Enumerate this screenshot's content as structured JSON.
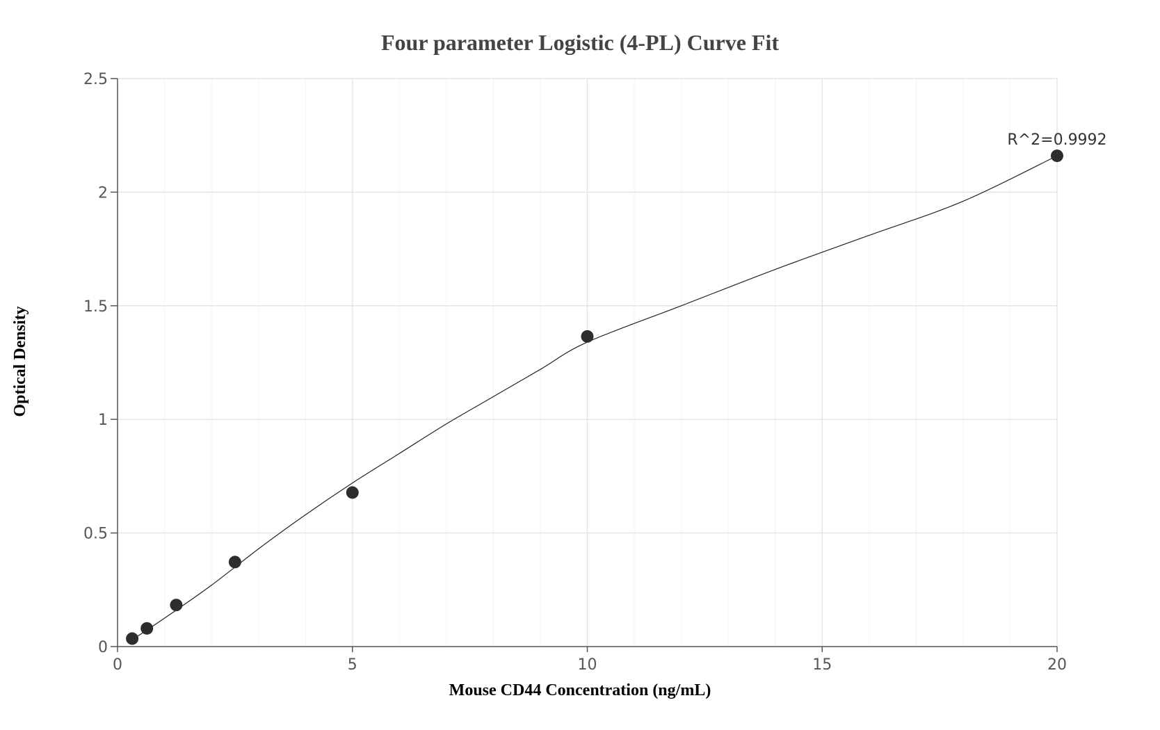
{
  "chart_data": {
    "type": "scatter",
    "title": "Four parameter Logistic (4-PL) Curve Fit",
    "xlabel": "Mouse CD44 Concentration (ng/mL)",
    "ylabel": "Optical Density",
    "xlim": [
      0,
      20
    ],
    "ylim": [
      0,
      2.5
    ],
    "x_ticks": [
      0,
      5,
      10,
      15,
      20
    ],
    "x_tick_labels": [
      "0",
      "5",
      "10",
      "15",
      "20"
    ],
    "y_ticks": [
      0,
      0.5,
      1,
      1.5,
      2,
      2.5
    ],
    "y_tick_labels": [
      "0",
      "0.5",
      "1",
      "1.5",
      "2",
      "2.5"
    ],
    "grid": true,
    "points": [
      {
        "x": 0.3125,
        "y": 0.035
      },
      {
        "x": 0.625,
        "y": 0.08
      },
      {
        "x": 1.25,
        "y": 0.183
      },
      {
        "x": 2.5,
        "y": 0.372
      },
      {
        "x": 5,
        "y": 0.678
      },
      {
        "x": 10,
        "y": 1.365
      },
      {
        "x": 20,
        "y": 2.16
      }
    ],
    "fit_curve": [
      {
        "x": 0.3125,
        "y": 0.03
      },
      {
        "x": 1,
        "y": 0.125
      },
      {
        "x": 2,
        "y": 0.27
      },
      {
        "x": 3,
        "y": 0.43
      },
      {
        "x": 4,
        "y": 0.58
      },
      {
        "x": 5,
        "y": 0.72
      },
      {
        "x": 6,
        "y": 0.85
      },
      {
        "x": 7,
        "y": 0.98
      },
      {
        "x": 8,
        "y": 1.1
      },
      {
        "x": 9,
        "y": 1.22
      },
      {
        "x": 10,
        "y": 1.34
      },
      {
        "x": 12,
        "y": 1.5
      },
      {
        "x": 14,
        "y": 1.66
      },
      {
        "x": 16,
        "y": 1.81
      },
      {
        "x": 18,
        "y": 1.96
      },
      {
        "x": 20,
        "y": 2.16
      }
    ],
    "annotation": {
      "text": "R^2=0.9992",
      "x": 20,
      "y": 2.16
    }
  }
}
